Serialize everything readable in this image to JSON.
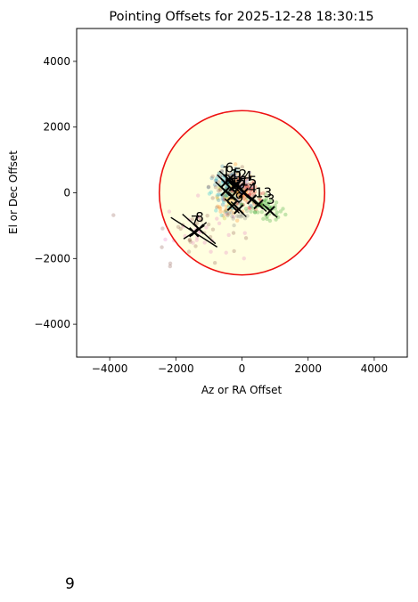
{
  "chart_data": {
    "type": "scatter",
    "title": "Pointing Offsets for 2025-12-28 18:30:15",
    "xlabel": "Az or RA Offset",
    "ylabel": "El or Dec Offset",
    "xlim": [
      -5000,
      5000
    ],
    "ylim": [
      -5000,
      5000
    ],
    "xticks": [
      -4000,
      -2000,
      0,
      2000,
      4000
    ],
    "yticks": [
      -4000,
      -2000,
      0,
      2000,
      4000
    ],
    "xtick_labels": [
      "−4000",
      "−2000",
      "0",
      "2000",
      "4000"
    ],
    "ytick_labels": [
      "−4000",
      "−2000",
      "0",
      "2000",
      "4000"
    ],
    "grid": false,
    "circle": {
      "center": [
        0,
        0
      ],
      "radius": 2500,
      "edge_color": "#ee1111",
      "fill_color": "#ffffe0"
    },
    "series": [
      {
        "label": "1",
        "color": "#1f77b4",
        "center": [
          -500,
          300
        ],
        "spread": [
          250,
          250
        ]
      },
      {
        "label": "2",
        "color": "#ff7f0e",
        "center": [
          -300,
          -400
        ],
        "spread": [
          220,
          220
        ]
      },
      {
        "label": "3",
        "color": "#2ca02c",
        "center": [
          850,
          -550
        ],
        "spread": [
          220,
          200
        ]
      },
      {
        "label": "4",
        "color": "#d62728",
        "center": [
          300,
          -200
        ],
        "spread": [
          230,
          220
        ]
      },
      {
        "label": "5",
        "color": "#9467bd",
        "center": [
          -150,
          250
        ],
        "spread": [
          250,
          250
        ]
      },
      {
        "label": "6",
        "color": "#8c564b",
        "center": [
          -400,
          400
        ],
        "spread": [
          280,
          260
        ]
      },
      {
        "label": "7",
        "color": "#8c564b",
        "center": [
          -1450,
          -1200
        ],
        "spread": [
          700,
          450
        ]
      },
      {
        "label": "8",
        "color": "#e377c2",
        "center": [
          -1300,
          -1100
        ],
        "spread": [
          500,
          450
        ]
      },
      {
        "label": "9",
        "color": "#7f7f7f",
        "center": [
          -100,
          -500
        ],
        "spread": [
          230,
          230
        ]
      },
      {
        "label": "10",
        "color": "#bcbd22",
        "center": [
          -300,
          -100
        ],
        "spread": [
          220,
          200
        ]
      },
      {
        "label": "11",
        "color": "#17becf",
        "center": [
          -500,
          50
        ],
        "spread": [
          300,
          280
        ]
      },
      {
        "label": "12",
        "color": "#1f77b4",
        "center": [
          -250,
          200
        ],
        "spread": [
          230,
          230
        ]
      },
      {
        "label": "13",
        "color": "#2ca02c",
        "center": [
          500,
          -350
        ],
        "spread": [
          240,
          220
        ]
      },
      {
        "label": "14",
        "color": "#ff7f0e",
        "center": [
          -100,
          150
        ],
        "spread": [
          220,
          220
        ]
      },
      {
        "label": "15",
        "color": "#d62728",
        "center": [
          50,
          0
        ],
        "spread": [
          220,
          220
        ]
      }
    ]
  },
  "footer": {
    "number": "9"
  }
}
